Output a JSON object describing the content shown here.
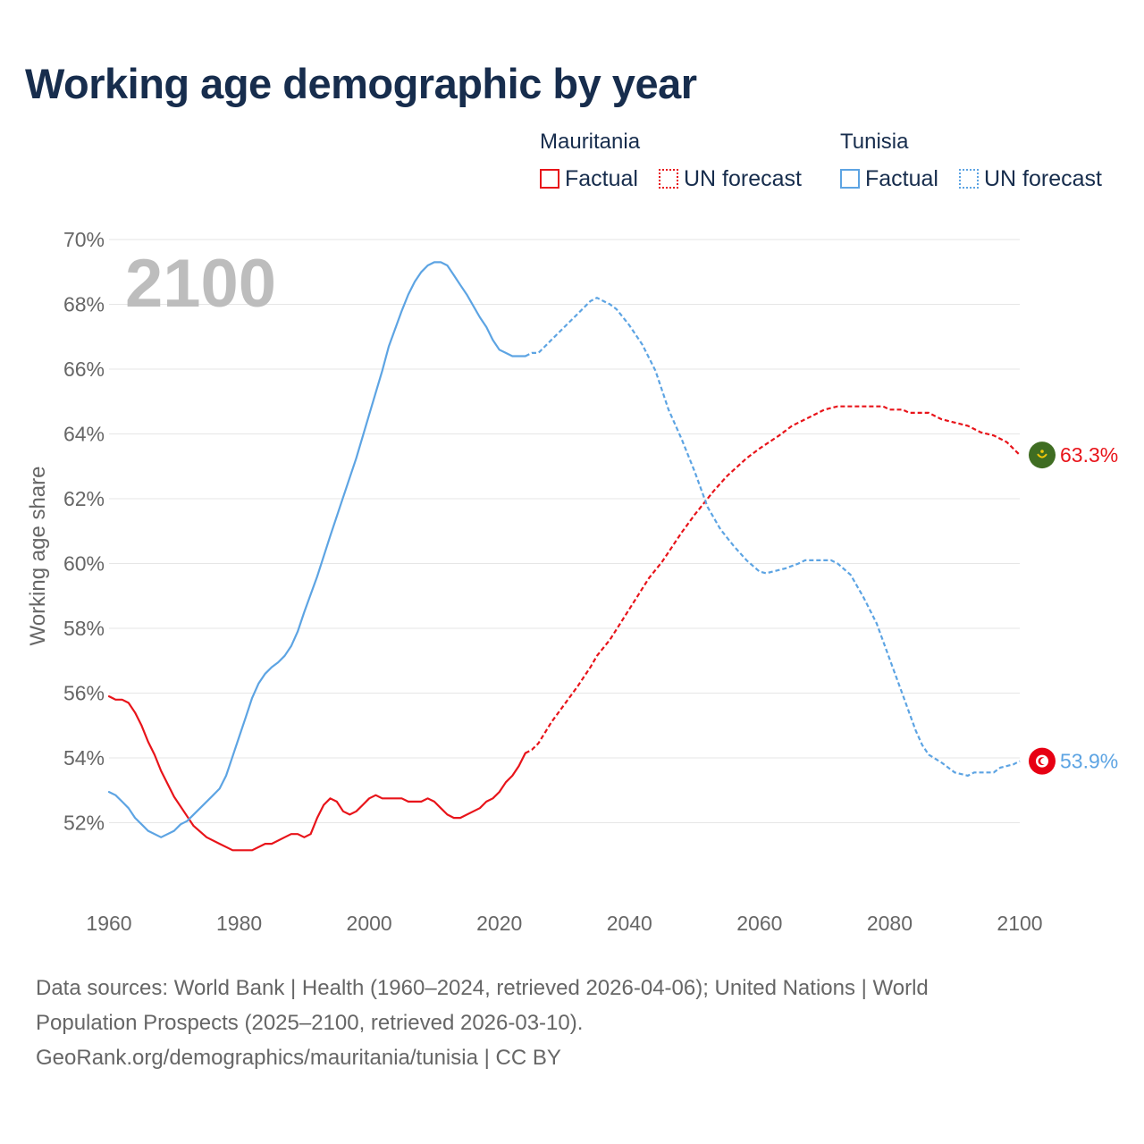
{
  "title": "Working age demographic by year",
  "year_watermark": "2100",
  "legend": {
    "groups": [
      {
        "country": "Mauritania",
        "factual_label": "Factual",
        "forecast_label": "UN forecast",
        "color": "#e8141a"
      },
      {
        "country": "Tunisia",
        "factual_label": "Factual",
        "forecast_label": "UN forecast",
        "color": "#5da4e3"
      }
    ]
  },
  "footer": {
    "line1": "Data sources: World Bank | Health (1960–2024, retrieved 2026-04-06); United Nations | World",
    "line2": "Population Prospects (2025–2100, retrieved 2026-03-10).",
    "line3": "GeoRank.org/demographics/mauritania/tunisia | CC BY"
  },
  "chart_data": {
    "type": "line",
    "title": "Working age demographic by year",
    "xlabel": "",
    "ylabel": "Working age share",
    "xlim": [
      1960,
      2100
    ],
    "ylim": [
      50,
      70
    ],
    "x_ticks": [
      1960,
      1980,
      2000,
      2020,
      2040,
      2060,
      2080,
      2100
    ],
    "y_ticks": [
      52,
      54,
      56,
      58,
      60,
      62,
      64,
      66,
      68,
      70
    ],
    "y_tick_suffix": "%",
    "grid": true,
    "factual_until": 2024,
    "series": [
      {
        "name": "Mauritania",
        "color": "#e8141a",
        "end_label": "63.3%",
        "flag_icon": "mauritania-flag-icon",
        "points": [
          [
            1960,
            55.9
          ],
          [
            1961,
            55.8
          ],
          [
            1962,
            55.8
          ],
          [
            1963,
            55.7
          ],
          [
            1964,
            55.4
          ],
          [
            1965,
            55.0
          ],
          [
            1966,
            54.5
          ],
          [
            1967,
            54.1
          ],
          [
            1968,
            53.6
          ],
          [
            1970,
            52.8
          ],
          [
            1972,
            52.2
          ],
          [
            1973,
            51.9
          ],
          [
            1975,
            51.55
          ],
          [
            1977,
            51.35
          ],
          [
            1979,
            51.15
          ],
          [
            1982,
            51.15
          ],
          [
            1984,
            51.35
          ],
          [
            1985,
            51.35
          ],
          [
            1987,
            51.55
          ],
          [
            1988,
            51.65
          ],
          [
            1989,
            51.65
          ],
          [
            1990,
            51.55
          ],
          [
            1991,
            51.65
          ],
          [
            1992,
            52.15
          ],
          [
            1993,
            52.55
          ],
          [
            1994,
            52.75
          ],
          [
            1995,
            52.65
          ],
          [
            1996,
            52.35
          ],
          [
            1997,
            52.25
          ],
          [
            1998,
            52.35
          ],
          [
            1999,
            52.55
          ],
          [
            2000,
            52.75
          ],
          [
            2001,
            52.85
          ],
          [
            2002,
            52.75
          ],
          [
            2005,
            52.75
          ],
          [
            2006,
            52.65
          ],
          [
            2008,
            52.65
          ],
          [
            2009,
            52.75
          ],
          [
            2010,
            52.65
          ],
          [
            2011,
            52.45
          ],
          [
            2012,
            52.25
          ],
          [
            2013,
            52.15
          ],
          [
            2014,
            52.15
          ],
          [
            2016,
            52.35
          ],
          [
            2017,
            52.45
          ],
          [
            2018,
            52.65
          ],
          [
            2019,
            52.75
          ],
          [
            2020,
            52.95
          ],
          [
            2021,
            53.25
          ],
          [
            2022,
            53.45
          ],
          [
            2023,
            53.75
          ],
          [
            2024,
            54.15
          ],
          [
            2025,
            54.25
          ],
          [
            2026,
            54.45
          ],
          [
            2028,
            55.1
          ],
          [
            2030,
            55.65
          ],
          [
            2032,
            56.2
          ],
          [
            2034,
            56.8
          ],
          [
            2035,
            57.15
          ],
          [
            2037,
            57.65
          ],
          [
            2040,
            58.6
          ],
          [
            2043,
            59.55
          ],
          [
            2045,
            60.05
          ],
          [
            2048,
            60.95
          ],
          [
            2050,
            61.5
          ],
          [
            2053,
            62.25
          ],
          [
            2055,
            62.7
          ],
          [
            2058,
            63.25
          ],
          [
            2060,
            63.55
          ],
          [
            2063,
            63.95
          ],
          [
            2065,
            64.25
          ],
          [
            2068,
            64.55
          ],
          [
            2070,
            64.75
          ],
          [
            2072,
            64.85
          ],
          [
            2079,
            64.85
          ],
          [
            2080,
            64.75
          ],
          [
            2082,
            64.75
          ],
          [
            2083,
            64.65
          ],
          [
            2086,
            64.65
          ],
          [
            2087,
            64.55
          ],
          [
            2088,
            64.45
          ],
          [
            2090,
            64.35
          ],
          [
            2092,
            64.25
          ],
          [
            2094,
            64.05
          ],
          [
            2096,
            63.95
          ],
          [
            2098,
            63.75
          ],
          [
            2100,
            63.35
          ]
        ]
      },
      {
        "name": "Tunisia",
        "color": "#5da4e3",
        "end_label": "53.9%",
        "flag_icon": "tunisia-flag-icon",
        "points": [
          [
            1960,
            52.95
          ],
          [
            1961,
            52.85
          ],
          [
            1962,
            52.65
          ],
          [
            1963,
            52.45
          ],
          [
            1964,
            52.15
          ],
          [
            1965,
            51.95
          ],
          [
            1966,
            51.75
          ],
          [
            1968,
            51.55
          ],
          [
            1970,
            51.75
          ],
          [
            1971,
            51.95
          ],
          [
            1972,
            52.05
          ],
          [
            1974,
            52.45
          ],
          [
            1976,
            52.85
          ],
          [
            1977,
            53.05
          ],
          [
            1978,
            53.45
          ],
          [
            1979,
            54.05
          ],
          [
            1980,
            54.65
          ],
          [
            1981,
            55.25
          ],
          [
            1982,
            55.85
          ],
          [
            1983,
            56.3
          ],
          [
            1984,
            56.6
          ],
          [
            1985,
            56.8
          ],
          [
            1986,
            56.95
          ],
          [
            1987,
            57.15
          ],
          [
            1988,
            57.45
          ],
          [
            1989,
            57.9
          ],
          [
            1990,
            58.5
          ],
          [
            1992,
            59.6
          ],
          [
            1994,
            60.85
          ],
          [
            1996,
            62.05
          ],
          [
            1998,
            63.25
          ],
          [
            2000,
            64.6
          ],
          [
            2002,
            65.95
          ],
          [
            2003,
            66.7
          ],
          [
            2005,
            67.8
          ],
          [
            2006,
            68.3
          ],
          [
            2007,
            68.7
          ],
          [
            2008,
            69.0
          ],
          [
            2009,
            69.2
          ],
          [
            2010,
            69.3
          ],
          [
            2011,
            69.3
          ],
          [
            2012,
            69.2
          ],
          [
            2013,
            68.9
          ],
          [
            2014,
            68.6
          ],
          [
            2015,
            68.3
          ],
          [
            2016,
            67.95
          ],
          [
            2017,
            67.6
          ],
          [
            2018,
            67.3
          ],
          [
            2019,
            66.9
          ],
          [
            2020,
            66.6
          ],
          [
            2021,
            66.5
          ],
          [
            2022,
            66.4
          ],
          [
            2024,
            66.4
          ],
          [
            2025,
            66.5
          ],
          [
            2026,
            66.5
          ],
          [
            2028,
            66.9
          ],
          [
            2030,
            67.3
          ],
          [
            2032,
            67.7
          ],
          [
            2034,
            68.1
          ],
          [
            2035,
            68.2
          ],
          [
            2037,
            68.0
          ],
          [
            2038,
            67.85
          ],
          [
            2040,
            67.35
          ],
          [
            2042,
            66.75
          ],
          [
            2044,
            65.95
          ],
          [
            2046,
            64.75
          ],
          [
            2048,
            63.85
          ],
          [
            2050,
            62.85
          ],
          [
            2052,
            61.75
          ],
          [
            2054,
            61.05
          ],
          [
            2056,
            60.55
          ],
          [
            2058,
            60.1
          ],
          [
            2060,
            59.75
          ],
          [
            2061,
            59.7
          ],
          [
            2062,
            59.75
          ],
          [
            2064,
            59.85
          ],
          [
            2066,
            60.0
          ],
          [
            2067,
            60.1
          ],
          [
            2071,
            60.1
          ],
          [
            2072,
            60.0
          ],
          [
            2074,
            59.65
          ],
          [
            2076,
            58.95
          ],
          [
            2078,
            58.15
          ],
          [
            2080,
            57.05
          ],
          [
            2082,
            55.95
          ],
          [
            2084,
            54.85
          ],
          [
            2085,
            54.4
          ],
          [
            2086,
            54.1
          ],
          [
            2088,
            53.85
          ],
          [
            2090,
            53.55
          ],
          [
            2092,
            53.45
          ],
          [
            2093,
            53.55
          ],
          [
            2096,
            53.55
          ],
          [
            2097,
            53.7
          ],
          [
            2099,
            53.8
          ],
          [
            2100,
            53.9
          ]
        ]
      }
    ]
  }
}
